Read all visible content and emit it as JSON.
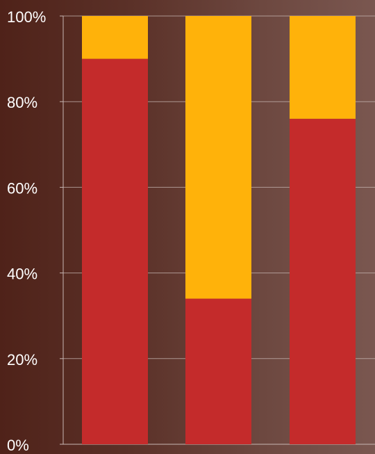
{
  "chart_data": {
    "type": "bar",
    "stacked": true,
    "percent": true,
    "categories": [
      "",
      "",
      ""
    ],
    "series": [
      {
        "values": [
          90,
          34,
          76
        ],
        "color": "#c42b2b"
      },
      {
        "values": [
          10,
          66,
          24
        ],
        "color": "#ffb20a"
      }
    ],
    "ylim": [
      0,
      100
    ],
    "yticks": [
      0,
      20,
      40,
      60,
      80,
      100
    ],
    "ytick_labels": [
      "0%",
      "20%",
      "40%",
      "60%",
      "80%",
      "100%"
    ],
    "grid": true,
    "legend": false,
    "title": "",
    "xlabel": "",
    "ylabel": ""
  }
}
